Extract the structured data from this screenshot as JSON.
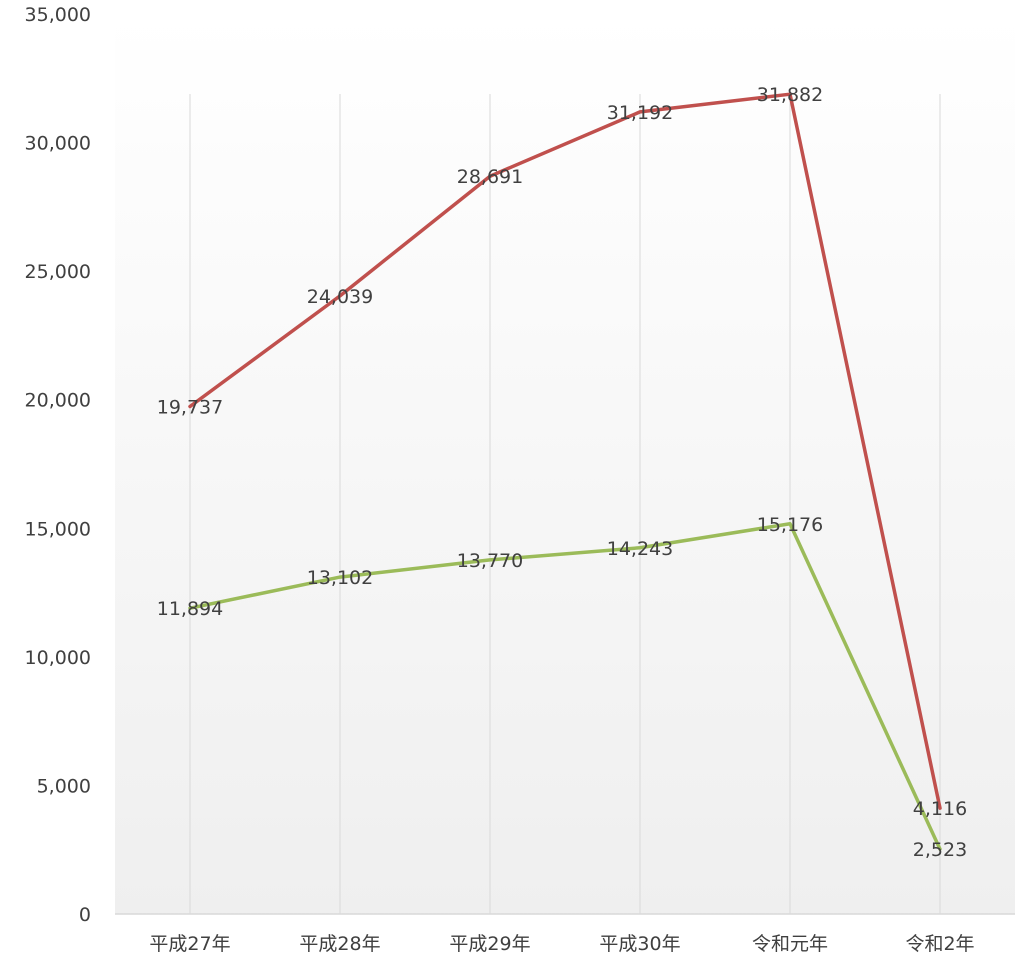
{
  "chart_data": {
    "type": "line",
    "title": "",
    "xlabel": "",
    "ylabel": "",
    "categories": [
      "平成27年",
      "平成28年",
      "平成29年",
      "平成30年",
      "令和元年",
      "令和2年"
    ],
    "series": [
      {
        "values": [
          19737,
          24039,
          28691,
          31192,
          31882,
          4116
        ],
        "color": "#c0504d"
      },
      {
        "values": [
          11894,
          13102,
          13770,
          14243,
          15176,
          2523
        ],
        "color": "#9bbb59"
      }
    ],
    "data_labels": [
      [
        "19,737",
        "24,039",
        "28,691",
        "31,192",
        "31,882",
        "4,116"
      ],
      [
        "11,894",
        "13,102",
        "13,770",
        "14,243",
        "15,176",
        "2,523"
      ]
    ],
    "ylim": [
      0,
      35000
    ],
    "yticks": [
      0,
      5000,
      10000,
      15000,
      20000,
      25000,
      30000,
      35000
    ],
    "ytick_labels": [
      "0",
      "5,000",
      "10,000",
      "15,000",
      "20,000",
      "25,000",
      "30,000",
      "35,000"
    ],
    "grid": "vertical",
    "legend": "none",
    "background_gradient": [
      "#ffffff",
      "#efefef"
    ],
    "gridline_color": "#d9d9d9"
  }
}
